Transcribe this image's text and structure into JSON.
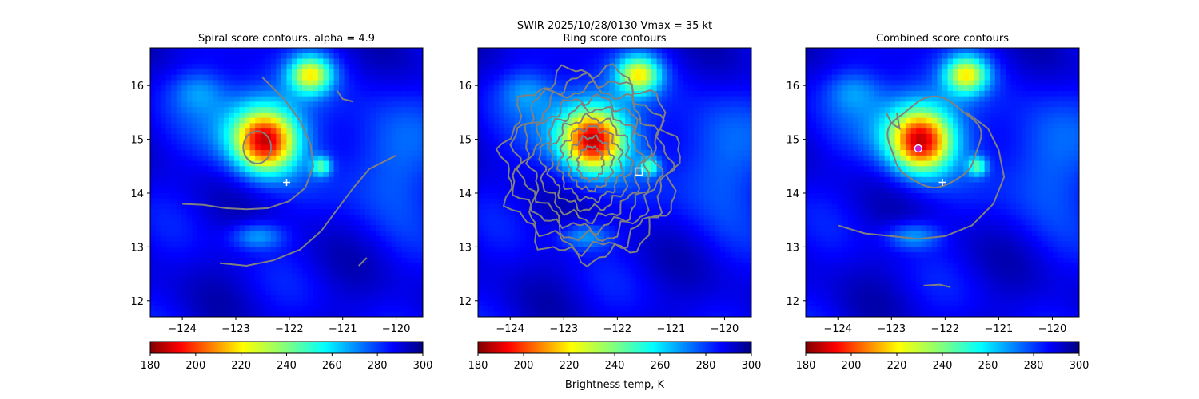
{
  "figure": {
    "suptitle_line1": "SWIR  2025/10/28/0130    Vmax = 35 kt",
    "colorbar_label": "Brightness temp, K"
  },
  "chart_data": [
    {
      "type": "heatmap",
      "title": "Spiral score contours, alpha =  4.9",
      "xlim": [
        -124.6,
        -119.5
      ],
      "ylim": [
        11.7,
        16.7
      ],
      "xticks": [
        -124,
        -123,
        -122,
        -121,
        -120
      ],
      "yticks": [
        12,
        13,
        14,
        15,
        16
      ],
      "xtick_labels": [
        "−124",
        "−123",
        "−122",
        "−121",
        "−120"
      ],
      "ytick_labels": [
        "12",
        "13",
        "14",
        "15",
        "16"
      ],
      "colorbar": {
        "min": 180,
        "max": 300,
        "ticks": [
          180,
          200,
          220,
          240,
          260,
          280,
          300
        ],
        "tick_labels": [
          "180",
          "200",
          "220",
          "240",
          "260",
          "280",
          "300"
        ],
        "colormap": "jet_r"
      },
      "markers": [
        {
          "kind": "plus",
          "lon": -122.05,
          "lat": 14.2,
          "color": "#ffffff"
        }
      ],
      "contours": "spiral",
      "contour_color": "#808080"
    },
    {
      "type": "heatmap",
      "title": "Ring score contours",
      "xlim": [
        -124.6,
        -119.5
      ],
      "ylim": [
        11.7,
        16.7
      ],
      "xticks": [
        -124,
        -123,
        -122,
        -121,
        -120
      ],
      "yticks": [
        12,
        13,
        14,
        15,
        16
      ],
      "xtick_labels": [
        "−124",
        "−123",
        "−122",
        "−121",
        "−120"
      ],
      "ytick_labels": [
        "12",
        "13",
        "14",
        "15",
        "16"
      ],
      "colorbar": {
        "min": 180,
        "max": 300,
        "ticks": [
          180,
          200,
          220,
          240,
          260,
          280,
          300
        ],
        "tick_labels": [
          "180",
          "200",
          "220",
          "240",
          "260",
          "280",
          "300"
        ],
        "colormap": "jet_r"
      },
      "markers": [
        {
          "kind": "square",
          "lon": -121.6,
          "lat": 14.4,
          "color": "#ffffff"
        }
      ],
      "contours": "ring",
      "contour_color": "#808080"
    },
    {
      "type": "heatmap",
      "title": "Combined score contours",
      "xlim": [
        -124.6,
        -119.5
      ],
      "ylim": [
        11.7,
        16.7
      ],
      "xticks": [
        -124,
        -123,
        -122,
        -121,
        -120
      ],
      "yticks": [
        12,
        13,
        14,
        15,
        16
      ],
      "xtick_labels": [
        "−124",
        "−123",
        "−122",
        "−121",
        "−120"
      ],
      "ytick_labels": [
        "12",
        "13",
        "14",
        "15",
        "16"
      ],
      "colorbar": {
        "min": 180,
        "max": 300,
        "ticks": [
          180,
          200,
          220,
          240,
          260,
          280,
          300
        ],
        "tick_labels": [
          "180",
          "200",
          "220",
          "240",
          "260",
          "280",
          "300"
        ],
        "colormap": "jet_r"
      },
      "markers": [
        {
          "kind": "plus",
          "lon": -122.05,
          "lat": 14.2,
          "color": "#ffffff"
        },
        {
          "kind": "circle",
          "lon": -122.5,
          "lat": 14.83,
          "color": "#d020d0"
        }
      ],
      "contours": "combined",
      "contour_color": "#808080"
    }
  ]
}
